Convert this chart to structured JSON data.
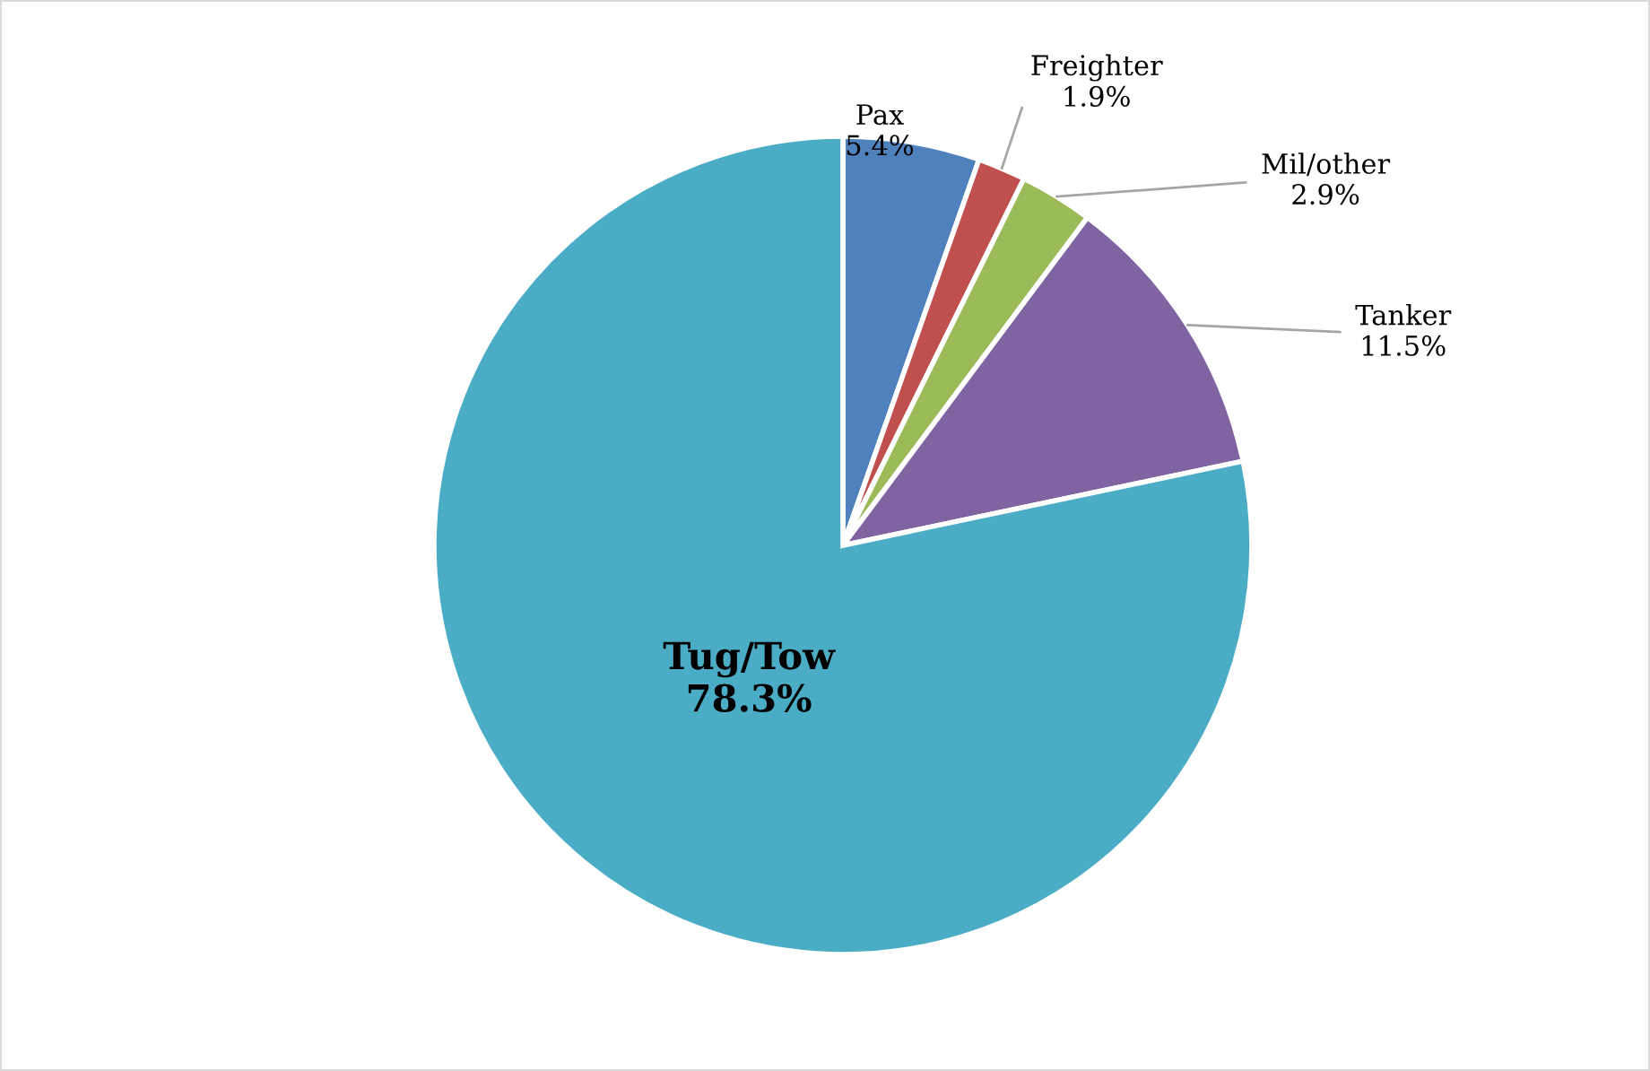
{
  "chart_data": {
    "type": "pie",
    "categories": [
      "Pax",
      "Freighter",
      "Mil/other",
      "Tanker",
      "Tug/Tow"
    ],
    "values": [
      5.4,
      1.9,
      2.9,
      11.5,
      78.3
    ],
    "colors": [
      "#4f81bd",
      "#c0504d",
      "#9bbb59",
      "#8064a2",
      "#4bacc6"
    ],
    "value_labels": [
      "5.4%",
      "1.9%",
      "2.9%",
      "11.5%",
      "78.3%"
    ],
    "legend": false
  }
}
